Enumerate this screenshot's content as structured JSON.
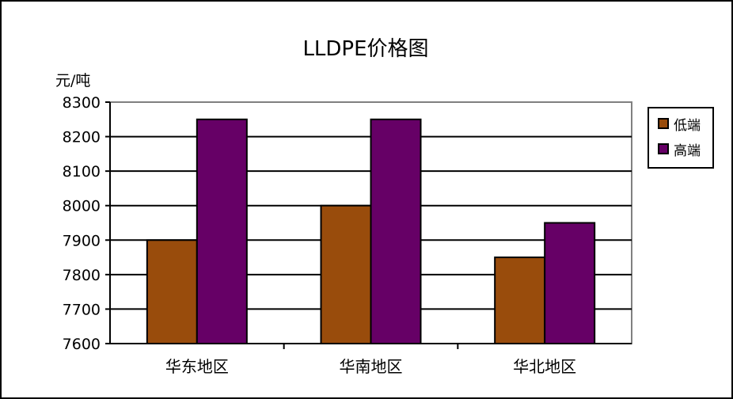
{
  "chart_data": {
    "type": "bar",
    "title": "LLDPE价格图",
    "ylabel": "元/吨",
    "xlabel": "",
    "categories": [
      "华东地区",
      "华南地区",
      "华北地区"
    ],
    "series": [
      {
        "name": "低端",
        "values": [
          7900,
          8000,
          7850
        ],
        "color": "#994C0C"
      },
      {
        "name": "高端",
        "values": [
          8250,
          8250,
          7950
        ],
        "color": "#660066"
      }
    ],
    "ylim": [
      7600,
      8300
    ],
    "yticks": [
      7600,
      7700,
      7800,
      7900,
      8000,
      8100,
      8200,
      8300
    ],
    "grid": true,
    "legend_position": "right"
  }
}
